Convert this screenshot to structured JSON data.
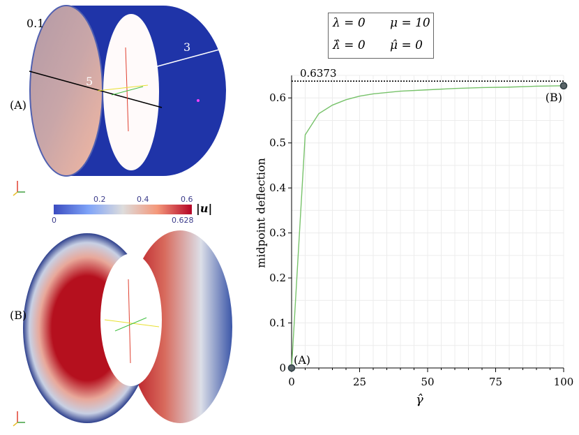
{
  "legend": {
    "lambda": "λ = 0",
    "mu": "μ = 10",
    "lambda_hat": "λ̂ = 0",
    "mu_hat": "μ̂ = 0"
  },
  "figure_labels": {
    "panel_a": "(A)",
    "panel_b": "(B)",
    "thickness": "0.1",
    "diameter": "5",
    "length": "3",
    "colorbar_label": "|u|",
    "colorbar_min": "0",
    "colorbar_max": "0.628",
    "colorbar_ticks": [
      "0.2",
      "0.4",
      "0.6"
    ]
  },
  "colors": {
    "series": "#77c26a",
    "marker": "#2f3f44",
    "cylinder_outer": "#1a2f9a",
    "reference_line": "#000000"
  },
  "chart_data": {
    "type": "line",
    "title": "",
    "xlabel": "γ̂",
    "ylabel": "midpoint deflection",
    "xlim": [
      0,
      100
    ],
    "ylim": [
      0,
      0.65
    ],
    "x_ticks": [
      "0",
      "25",
      "50",
      "75",
      "100"
    ],
    "y_ticks": [
      "0",
      "0.1",
      "0.2",
      "0.3",
      "0.4",
      "0.5",
      "0.6"
    ],
    "grid": true,
    "series": [
      {
        "x": [
          0,
          5,
          10,
          15,
          20,
          25,
          30,
          40,
          50,
          60,
          70,
          80,
          90,
          100
        ],
        "values": [
          0,
          0.518,
          0.565,
          0.584,
          0.596,
          0.604,
          0.609,
          0.615,
          0.618,
          0.621,
          0.623,
          0.624,
          0.626,
          0.627
        ]
      }
    ],
    "reference_value": 0.6373,
    "reference_label": "0.6373",
    "markers": [
      {
        "label": "(A)",
        "x": 0,
        "y": 0
      },
      {
        "label": "(B)",
        "x": 100,
        "y": 0.627
      }
    ]
  }
}
